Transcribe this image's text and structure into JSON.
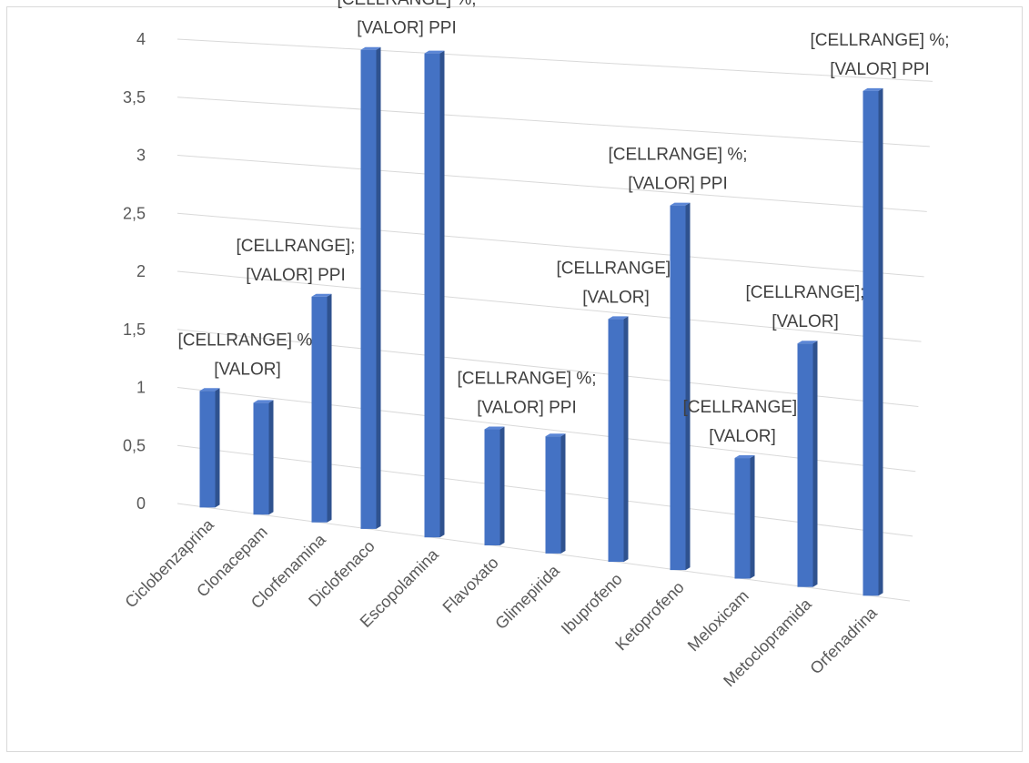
{
  "chart_data": {
    "type": "bar3d",
    "categories": [
      "Ciclobenzaprina",
      "Clonacepam",
      "Clorfenamina",
      "Diclofenaco",
      "Escopolamina",
      "Flavoxato",
      "Glimepirida",
      "Ibuprofeno",
      "Ketoprofeno",
      "Meloxicam",
      "Metoclopramida",
      "Orfenadrina"
    ],
    "values": [
      1,
      0.95,
      1.9,
      4,
      4,
      0.95,
      0.95,
      1.95,
      2.9,
      0.95,
      1.9,
      3.9
    ],
    "color": "#4472c4",
    "data_labels": [
      [
        "[CELLRANGE] %;",
        "[VALOR]"
      ],
      null,
      [
        "[CELLRANGE];",
        "[VALOR] PPI"
      ],
      [
        "[CELLRANGE] %,",
        "[VALOR] PPI"
      ],
      null,
      [
        "[CELLRANGE] %;",
        "[VALOR] PPI"
      ],
      null,
      [
        "[CELLRANGE];",
        "[VALOR]"
      ],
      [
        "[CELLRANGE] %;",
        "[VALOR] PPI"
      ],
      [
        "[CELLRANGE];",
        "[VALOR]"
      ],
      [
        "[CELLRANGE];",
        "[VALOR]"
      ],
      [
        "[CELLRANGE] %;",
        "[VALOR] PPI"
      ]
    ],
    "ylim": [
      0,
      4
    ],
    "yticks": [
      0,
      {
        "value": 0.5,
        "label": "0,5"
      },
      1,
      {
        "value": 1.5,
        "label": "1,5"
      },
      2,
      {
        "value": 2.5,
        "label": "2,5"
      },
      3,
      {
        "value": 3.5,
        "label": "3,5"
      },
      4
    ],
    "grid": true
  }
}
